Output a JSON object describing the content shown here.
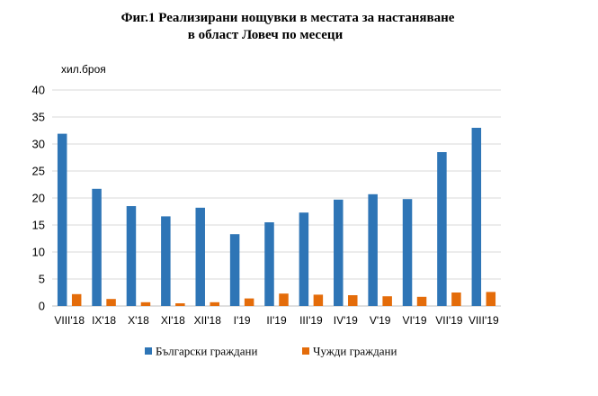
{
  "chart_data": {
    "type": "bar",
    "title_lines": [
      "Фиг.1 Реализирани нощувки в местата за настаняване",
      "в област Ловеч по месеци"
    ],
    "unit_label": "хил.броя",
    "categories": [
      "VIII'18",
      "IX'18",
      "X'18",
      "XI'18",
      "XII'18",
      "I'19",
      "II'19",
      "III'19",
      "IV'19",
      "V'19",
      "VI'19",
      "VII'19",
      "VIII'19"
    ],
    "series": [
      {
        "name": "Български граждани",
        "color": "#2E75B6",
        "values": [
          31.9,
          21.7,
          18.5,
          16.6,
          18.2,
          13.3,
          15.5,
          17.3,
          19.7,
          20.7,
          19.8,
          28.5,
          33.0
        ]
      },
      {
        "name": "Чужди граждани",
        "color": "#E46C0A",
        "values": [
          2.2,
          1.3,
          0.7,
          0.5,
          0.7,
          1.4,
          2.3,
          2.1,
          2.0,
          1.8,
          1.7,
          2.5,
          2.6
        ]
      }
    ],
    "ylim": [
      0,
      40
    ],
    "yticks": [
      0,
      5,
      10,
      15,
      20,
      25,
      30,
      35,
      40
    ],
    "grid": true,
    "legend_position": "bottom"
  }
}
